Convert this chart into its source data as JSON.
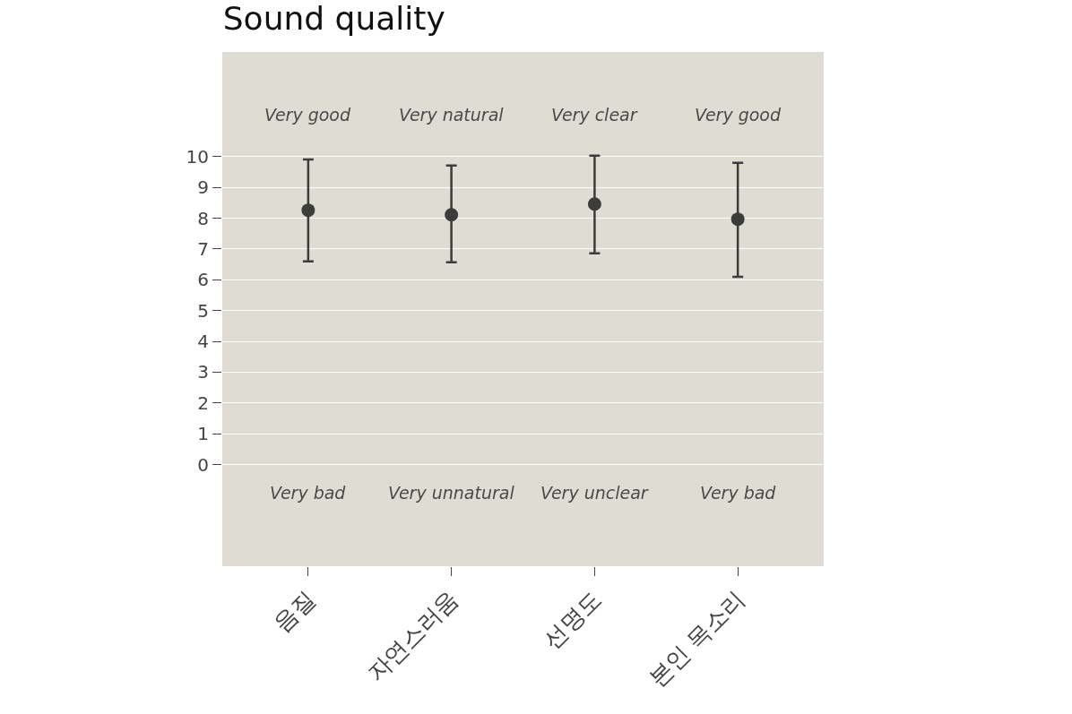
{
  "chart_data": {
    "type": "scatter",
    "title": "Sound quality",
    "categories": [
      "음질",
      "자연스러움",
      "선명도",
      "본인 목소리"
    ],
    "values": [
      8.26,
      8.11,
      8.46,
      7.97
    ],
    "errors": [
      [
        6.6,
        9.91
      ],
      [
        6.57,
        9.71
      ],
      [
        6.86,
        10.03
      ],
      [
        6.1,
        9.8
      ]
    ],
    "color": "#3a3d3a",
    "marker": "circle",
    "ylim": [
      -3.3,
      13.4
    ],
    "yticks": [
      0,
      1,
      2,
      3,
      4,
      5,
      6,
      7,
      8,
      9,
      10
    ],
    "grid": "y",
    "annotations": [
      "Very good",
      "Very natural",
      "Very clear",
      "Very good",
      "Very bad",
      "Very unnatural",
      "Very unclear",
      "Very bad"
    ]
  }
}
